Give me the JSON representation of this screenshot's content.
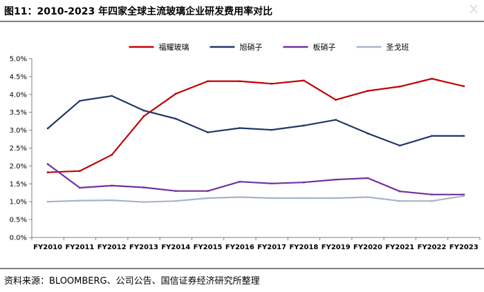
{
  "header": {
    "title": "图11：2010-2023 年四家全球主流玻璃企业研发费用率对比"
  },
  "footer": {
    "source": "资料来源：BLOOMBERG、公司公告、国信证券经济研究所整理"
  },
  "chart_data": {
    "type": "line",
    "categories": [
      "FY2010",
      "FY2011",
      "FY2012",
      "FY2013",
      "FY2014",
      "FY2015",
      "FY2016",
      "FY2017",
      "FY2018",
      "FY2019",
      "FY2020",
      "FY2021",
      "FY2022",
      "FY2023"
    ],
    "y_ticks": [
      "0.0%",
      "0.5%",
      "1.0%",
      "1.5%",
      "2.0%",
      "2.5%",
      "3.0%",
      "3.5%",
      "4.0%",
      "4.5%",
      "5.0%"
    ],
    "ylim": [
      0,
      5
    ],
    "grid": false,
    "legend_position": "top",
    "series": [
      {
        "name": "福耀玻璃",
        "color": "#c00000",
        "values": [
          1.82,
          1.86,
          2.31,
          3.39,
          4.02,
          4.37,
          4.37,
          4.3,
          4.39,
          3.85,
          4.1,
          4.22,
          4.44,
          4.23
        ]
      },
      {
        "name": "旭硝子",
        "color": "#1f3864",
        "values": [
          3.05,
          3.82,
          3.96,
          3.55,
          3.32,
          2.94,
          3.06,
          3.01,
          3.13,
          3.29,
          2.91,
          2.57,
          2.84,
          2.84
        ]
      },
      {
        "name": "板硝子",
        "color": "#7030a0",
        "values": [
          2.05,
          1.39,
          1.45,
          1.4,
          1.3,
          1.3,
          1.56,
          1.51,
          1.54,
          1.62,
          1.66,
          1.29,
          1.2,
          1.2
        ]
      },
      {
        "name": "圣戈班",
        "color": "#a6b4c8",
        "values": [
          1.0,
          1.03,
          1.04,
          0.99,
          1.02,
          1.1,
          1.13,
          1.1,
          1.1,
          1.1,
          1.13,
          1.02,
          1.02,
          1.16
        ]
      }
    ]
  }
}
